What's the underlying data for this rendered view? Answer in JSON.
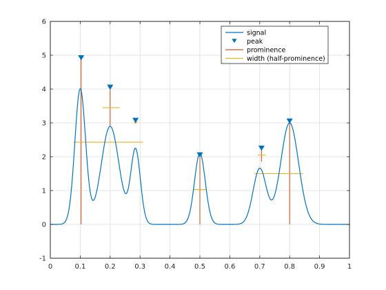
{
  "chart_data": {
    "type": "line",
    "title": "",
    "xlabel": "",
    "ylabel": "",
    "xlim": [
      0,
      1
    ],
    "ylim": [
      -1,
      6
    ],
    "xticks": [
      0,
      0.1,
      0.2,
      0.3,
      0.4,
      0.5,
      0.6,
      0.7,
      0.8,
      0.9,
      1
    ],
    "xtick_labels": [
      "0",
      "0.1",
      "0.2",
      "0.3",
      "0.4",
      "0.5",
      "0.6",
      "0.7",
      "0.8",
      "0.9",
      "1"
    ],
    "yticks": [
      -1,
      0,
      1,
      2,
      3,
      4,
      5,
      6
    ],
    "ytick_labels": [
      "-1",
      "0",
      "1",
      "2",
      "3",
      "4",
      "5",
      "6"
    ],
    "grid": true,
    "legend_position": "top-right",
    "legend": [
      "signal",
      "peak",
      "prominence",
      "width (half-prominence)"
    ],
    "colors": {
      "signal": "#0072BD",
      "peak": "#0072BD",
      "prominence": "#D95319",
      "width": "#EDB120",
      "grid": "#dcdcdc",
      "axes": "#262626"
    },
    "signal_components": [
      {
        "amplitude": 4.0,
        "center": 0.1,
        "sigma": 0.018
      },
      {
        "amplitude": 2.9,
        "center": 0.2,
        "sigma": 0.03
      },
      {
        "amplitude": 2.2,
        "center": 0.285,
        "sigma": 0.016
      },
      {
        "amplitude": 2.1,
        "center": 0.5,
        "sigma": 0.018
      },
      {
        "amplitude": 1.65,
        "center": 0.7,
        "sigma": 0.022
      },
      {
        "amplitude": 3.0,
        "center": 0.8,
        "sigma": 0.03
      }
    ],
    "peaks": [
      {
        "x": 0.103,
        "y": 4.92
      },
      {
        "x": 0.2,
        "y": 4.05
      },
      {
        "x": 0.285,
        "y": 3.07
      },
      {
        "x": 0.5,
        "y": 2.05
      },
      {
        "x": 0.706,
        "y": 2.25
      },
      {
        "x": 0.8,
        "y": 3.05
      }
    ],
    "prominences": [
      {
        "x": 0.103,
        "y_low": 0.0,
        "y_high": 4.92
      },
      {
        "x": 0.2,
        "y_low": 2.9,
        "y_high": 4.05
      },
      {
        "x": 0.285,
        "y_low": 2.98,
        "y_high": 3.07
      },
      {
        "x": 0.5,
        "y_low": 0.0,
        "y_high": 2.05
      },
      {
        "x": 0.706,
        "y_low": 1.85,
        "y_high": 2.25
      },
      {
        "x": 0.8,
        "y_low": 0.0,
        "y_high": 3.05
      }
    ],
    "widths": [
      {
        "y": 2.43,
        "x_start": 0.077,
        "x_end": 0.31
      },
      {
        "y": 3.45,
        "x_start": 0.175,
        "x_end": 0.232
      },
      {
        "y": 3.02,
        "x_start": 0.278,
        "x_end": 0.292
      },
      {
        "y": 1.03,
        "x_start": 0.479,
        "x_end": 0.521
      },
      {
        "y": 2.05,
        "x_start": 0.694,
        "x_end": 0.72
      },
      {
        "y": 1.5,
        "x_start": 0.682,
        "x_end": 0.846
      }
    ]
  }
}
